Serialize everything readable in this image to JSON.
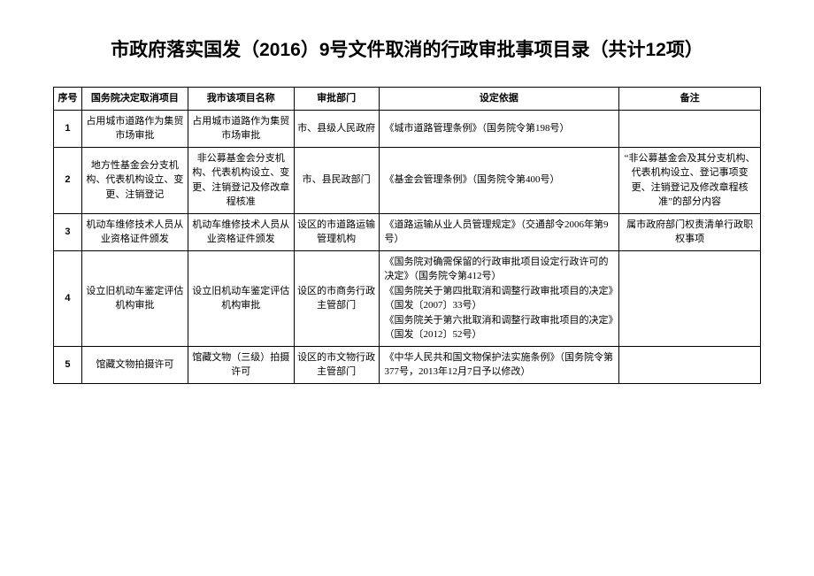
{
  "title": "市政府落实国发（2016）9号文件取消的行政审批事项目录（共计12项）",
  "columns": [
    "序号",
    "国务院决定取消项目",
    "我市该项目名称",
    "审批部门",
    "设定依据",
    "备注"
  ],
  "rows": [
    {
      "no": "1",
      "col1": "占用城市道路作为集贸市场审批",
      "col2": "占用城市道路作为集贸市场审批",
      "col3": "市、县级人民政府",
      "col4": "《城市道路管理条例》（国务院令第198号）",
      "col5": ""
    },
    {
      "no": "2",
      "col1": "地方性基金会分支机构、代表机构设立、变更、注销登记",
      "col2": "非公募基金会分支机构、代表机构设立、变更、注销登记及修改章程核准",
      "col3": "市、县民政部门",
      "col4": "《基金会管理条例》（国务院令第400号）",
      "col5": "“非公募基金会及其分支机构、代表机构设立、登记事项变更、注销登记及修改章程核准”的部分内容"
    },
    {
      "no": "3",
      "col1": "机动车维修技术人员从业资格证件颁发",
      "col2": "机动车维修技术人员从业资格证件颁发",
      "col3": "设区的市道路运输管理机构",
      "col4": "《道路运输从业人员管理规定》（交通部令2006年第9号）",
      "col5": "属市政府部门权责清单行政职权事项"
    },
    {
      "no": "4",
      "col1": "设立旧机动车鉴定评估机构审批",
      "col2": "设立旧机动车鉴定评估机构审批",
      "col3": "设区的市商务行政主管部门",
      "col4": "《国务院对确需保留的行政审批项目设定行政许可的决定》（国务院令第412号）\n《国务院关于第四批取消和调整行政审批项目的决定》（国发〔2007〕33号）\n《国务院关于第六批取消和调整行政审批项目的决定》（国发〔2012〕52号）",
      "col5": ""
    },
    {
      "no": "5",
      "col1": "馆藏文物拍摄许可",
      "col2": "馆藏文物（三级）拍摄许可",
      "col3": "设区的市文物行政主管部门",
      "col4": "《中华人民共和国文物保护法实施条例》（国务院令第377号，2013年12月7日予以修改）",
      "col5": ""
    }
  ],
  "style": {
    "page_bg": "#ffffff",
    "border_color": "#000000",
    "text_color": "#000000",
    "title_fontsize": 21,
    "cell_fontsize": 11,
    "col_widths_pct": [
      4,
      15,
      15,
      12,
      34,
      20
    ]
  }
}
